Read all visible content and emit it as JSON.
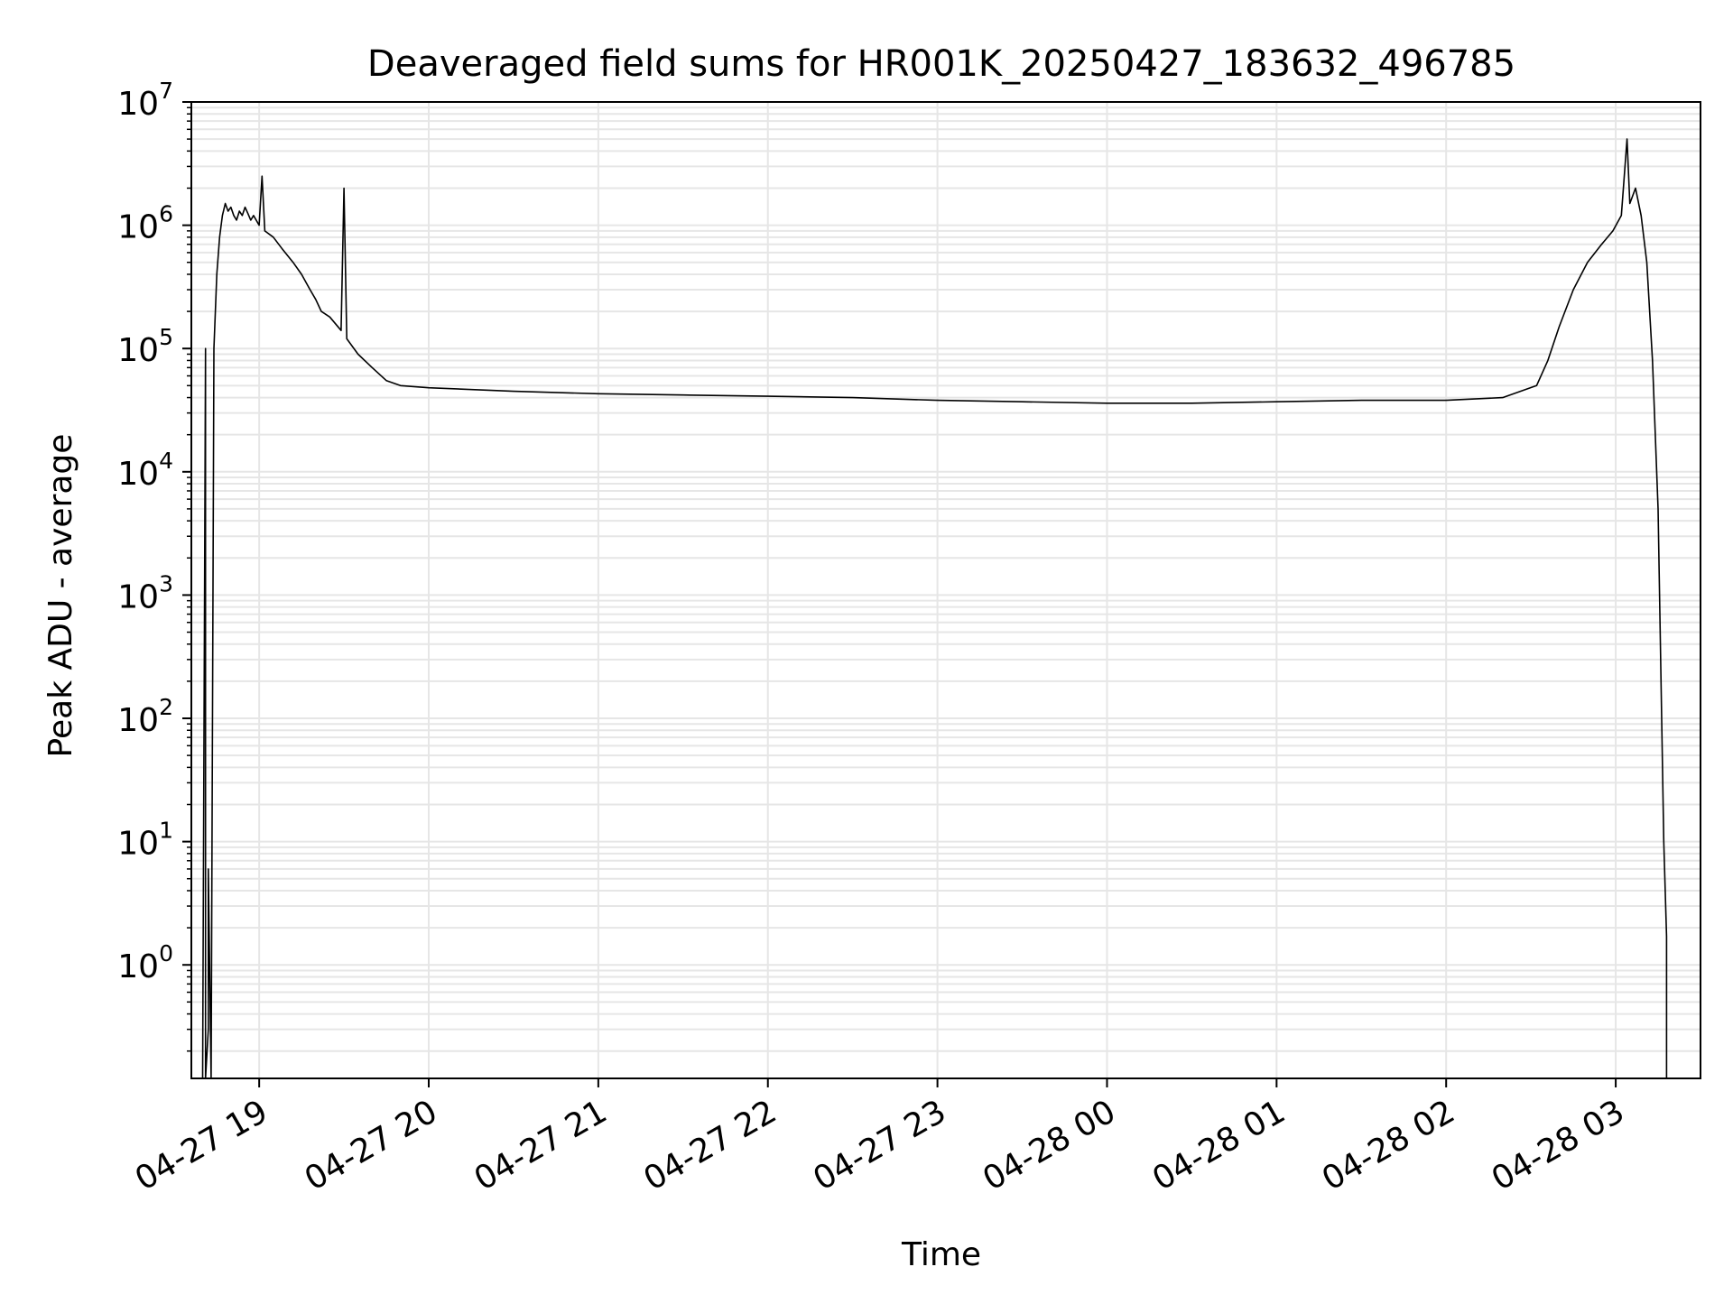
{
  "chart_data": {
    "type": "line",
    "title": "Deaveraged field sums for HR001K_20250427_183632_496785",
    "xlabel": "Time",
    "ylabel": "Peak ADU - average",
    "x_axis_type": "time",
    "xlim": [
      "2025-04-27 18:36",
      "2025-04-28 03:30"
    ],
    "x_ticks": [
      {
        "value": "2025-04-27 19:00",
        "label": "04-27 19"
      },
      {
        "value": "2025-04-27 20:00",
        "label": "04-27 20"
      },
      {
        "value": "2025-04-27 21:00",
        "label": "04-27 21"
      },
      {
        "value": "2025-04-27 22:00",
        "label": "04-27 22"
      },
      {
        "value": "2025-04-27 23:00",
        "label": "04-27 23"
      },
      {
        "value": "2025-04-28 00:00",
        "label": "04-28 00"
      },
      {
        "value": "2025-04-28 01:00",
        "label": "04-28 01"
      },
      {
        "value": "2025-04-28 02:00",
        "label": "04-28 02"
      },
      {
        "value": "2025-04-28 03:00",
        "label": "04-28 03"
      }
    ],
    "y_scale": "log",
    "ylim": [
      0.12,
      10000000
    ],
    "y_ticks": [
      {
        "value": 1,
        "base": "10",
        "exp": "0"
      },
      {
        "value": 10,
        "base": "10",
        "exp": "1"
      },
      {
        "value": 100,
        "base": "10",
        "exp": "2"
      },
      {
        "value": 1000,
        "base": "10",
        "exp": "3"
      },
      {
        "value": 10000,
        "base": "10",
        "exp": "4"
      },
      {
        "value": 100000,
        "base": "10",
        "exp": "5"
      },
      {
        "value": 1000000,
        "base": "10",
        "exp": "6"
      },
      {
        "value": 10000000,
        "base": "10",
        "exp": "7"
      }
    ],
    "grid": true,
    "minor_grid": true,
    "line_color": "#000000",
    "grid_color": "#e6e6e6",
    "series": [
      {
        "points": [
          [
            "2025-04-27 18:40",
            0.1
          ],
          [
            "2025-04-27 18:41",
            100000
          ],
          [
            "2025-04-27 18:41",
            0.1
          ],
          [
            "2025-04-27 18:42",
            0.3
          ],
          [
            "2025-04-27 18:42",
            6
          ],
          [
            "2025-04-27 18:43",
            0.1
          ],
          [
            "2025-04-27 18:44",
            100000
          ],
          [
            "2025-04-27 18:45",
            400000
          ],
          [
            "2025-04-27 18:46",
            800000
          ],
          [
            "2025-04-27 18:47",
            1200000
          ],
          [
            "2025-04-27 18:48",
            1500000
          ],
          [
            "2025-04-27 18:49",
            1300000
          ],
          [
            "2025-04-27 18:50",
            1400000
          ],
          [
            "2025-04-27 18:51",
            1200000
          ],
          [
            "2025-04-27 18:52",
            1100000
          ],
          [
            "2025-04-27 18:53",
            1300000
          ],
          [
            "2025-04-27 18:54",
            1200000
          ],
          [
            "2025-04-27 18:55",
            1400000
          ],
          [
            "2025-04-27 18:56",
            1250000
          ],
          [
            "2025-04-27 18:57",
            1100000
          ],
          [
            "2025-04-27 18:58",
            1200000
          ],
          [
            "2025-04-27 19:00",
            1000000
          ],
          [
            "2025-04-27 19:01",
            2500000
          ],
          [
            "2025-04-27 19:02",
            900000
          ],
          [
            "2025-04-27 19:05",
            800000
          ],
          [
            "2025-04-27 19:08",
            650000
          ],
          [
            "2025-04-27 19:12",
            500000
          ],
          [
            "2025-04-27 19:15",
            400000
          ],
          [
            "2025-04-27 19:18",
            300000
          ],
          [
            "2025-04-27 19:20",
            250000
          ],
          [
            "2025-04-27 19:22",
            200000
          ],
          [
            "2025-04-27 19:25",
            180000
          ],
          [
            "2025-04-27 19:29",
            140000
          ],
          [
            "2025-04-27 19:30",
            2000000
          ],
          [
            "2025-04-27 19:31",
            120000
          ],
          [
            "2025-04-27 19:35",
            90000
          ],
          [
            "2025-04-27 19:40",
            70000
          ],
          [
            "2025-04-27 19:45",
            55000
          ],
          [
            "2025-04-27 19:50",
            50000
          ],
          [
            "2025-04-27 20:00",
            48000
          ],
          [
            "2025-04-27 20:30",
            45000
          ],
          [
            "2025-04-27 21:00",
            43000
          ],
          [
            "2025-04-27 21:30",
            42000
          ],
          [
            "2025-04-27 22:00",
            41000
          ],
          [
            "2025-04-27 22:30",
            40000
          ],
          [
            "2025-04-27 23:00",
            38000
          ],
          [
            "2025-04-27 23:30",
            37000
          ],
          [
            "2025-04-28 00:00",
            36000
          ],
          [
            "2025-04-28 00:30",
            36000
          ],
          [
            "2025-04-28 01:00",
            37000
          ],
          [
            "2025-04-28 01:30",
            38000
          ],
          [
            "2025-04-28 02:00",
            38000
          ],
          [
            "2025-04-28 02:20",
            40000
          ],
          [
            "2025-04-28 02:32",
            50000
          ],
          [
            "2025-04-28 02:36",
            80000
          ],
          [
            "2025-04-28 02:40",
            150000
          ],
          [
            "2025-04-28 02:45",
            300000
          ],
          [
            "2025-04-28 02:50",
            500000
          ],
          [
            "2025-04-28 02:55",
            700000
          ],
          [
            "2025-04-28 02:59",
            900000
          ],
          [
            "2025-04-28 03:02",
            1200000
          ],
          [
            "2025-04-28 03:04",
            5000000
          ],
          [
            "2025-04-28 03:05",
            1500000
          ],
          [
            "2025-04-28 03:07",
            2000000
          ],
          [
            "2025-04-28 03:09",
            1200000
          ],
          [
            "2025-04-28 03:11",
            500000
          ],
          [
            "2025-04-28 03:13",
            80000
          ],
          [
            "2025-04-28 03:15",
            5000
          ],
          [
            "2025-04-28 03:17",
            10
          ],
          [
            "2025-04-28 03:18",
            1.7
          ],
          [
            "2025-04-28 03:18",
            0.1
          ]
        ]
      }
    ]
  }
}
